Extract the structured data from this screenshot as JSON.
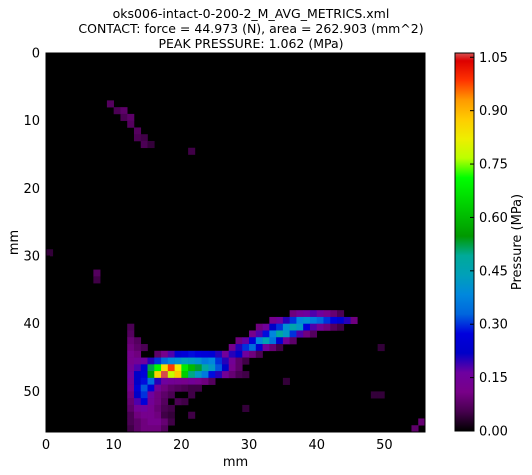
{
  "chart_data": {
    "type": "heatmap",
    "title_lines": [
      "oks006-intact-0-200-2_M_AVG_METRICS.xml",
      "CONTACT: force = 44.973 (N), area = 262.903 (mm^2)",
      "PEAK PRESSURE: 1.062 (MPa)"
    ],
    "xlabel": "mm",
    "ylabel": "mm",
    "xlim": [
      0,
      56
    ],
    "ylim": [
      56,
      0
    ],
    "x_ticks": [
      "0",
      "10",
      "20",
      "30",
      "40",
      "50"
    ],
    "y_ticks": [
      "0",
      "10",
      "20",
      "30",
      "40",
      "50"
    ],
    "colorbar": {
      "label": "Pressure (MPa)",
      "range": [
        0.0,
        1.062
      ],
      "ticks": [
        "0.00",
        "0.15",
        "0.30",
        "0.45",
        "0.60",
        "0.75",
        "0.90",
        "1.05"
      ],
      "colormap": "nipy_spectral"
    },
    "background_color": "#000000",
    "cells": [
      [
        9,
        7,
        0.07
      ],
      [
        10,
        8,
        0.06
      ],
      [
        11,
        8,
        0.08
      ],
      [
        11,
        9,
        0.06
      ],
      [
        12,
        9,
        0.08
      ],
      [
        12,
        10,
        0.07
      ],
      [
        13,
        11,
        0.07
      ],
      [
        13,
        12,
        0.06
      ],
      [
        14,
        12,
        0.05
      ],
      [
        14,
        13,
        0.06
      ],
      [
        15,
        13,
        0.04
      ],
      [
        21,
        14,
        0.05
      ],
      [
        0,
        29,
        0.04
      ],
      [
        7,
        32,
        0.07
      ],
      [
        7,
        33,
        0.05
      ],
      [
        36,
        38,
        0.1
      ],
      [
        37,
        38,
        0.14
      ],
      [
        38,
        38,
        0.16
      ],
      [
        39,
        38,
        0.18
      ],
      [
        40,
        38,
        0.16
      ],
      [
        41,
        38,
        0.12
      ],
      [
        42,
        38,
        0.09
      ],
      [
        43,
        38,
        0.06
      ],
      [
        33,
        39,
        0.12
      ],
      [
        34,
        39,
        0.16
      ],
      [
        35,
        39,
        0.2
      ],
      [
        36,
        39,
        0.3
      ],
      [
        37,
        39,
        0.38
      ],
      [
        38,
        39,
        0.4
      ],
      [
        39,
        39,
        0.36
      ],
      [
        40,
        39,
        0.33
      ],
      [
        41,
        39,
        0.3
      ],
      [
        42,
        39,
        0.27
      ],
      [
        43,
        39,
        0.24
      ],
      [
        44,
        39,
        0.2
      ],
      [
        45,
        39,
        0.1
      ],
      [
        12,
        40,
        0.06
      ],
      [
        31,
        40,
        0.1
      ],
      [
        32,
        40,
        0.15
      ],
      [
        33,
        40,
        0.22
      ],
      [
        34,
        40,
        0.3
      ],
      [
        35,
        40,
        0.4
      ],
      [
        36,
        40,
        0.46
      ],
      [
        37,
        40,
        0.42
      ],
      [
        38,
        40,
        0.27
      ],
      [
        39,
        40,
        0.18
      ],
      [
        40,
        40,
        0.14
      ],
      [
        41,
        40,
        0.1
      ],
      [
        42,
        40,
        0.07
      ],
      [
        43,
        40,
        0.05
      ],
      [
        12,
        41,
        0.07
      ],
      [
        30,
        41,
        0.12
      ],
      [
        31,
        41,
        0.18
      ],
      [
        32,
        41,
        0.28
      ],
      [
        33,
        41,
        0.38
      ],
      [
        34,
        41,
        0.48
      ],
      [
        35,
        41,
        0.42
      ],
      [
        36,
        41,
        0.3
      ],
      [
        37,
        41,
        0.18
      ],
      [
        38,
        41,
        0.1
      ],
      [
        39,
        41,
        0.07
      ],
      [
        12,
        42,
        0.09
      ],
      [
        13,
        42,
        0.07
      ],
      [
        28,
        42,
        0.1
      ],
      [
        29,
        42,
        0.17
      ],
      [
        30,
        42,
        0.26
      ],
      [
        31,
        42,
        0.38
      ],
      [
        32,
        42,
        0.45
      ],
      [
        33,
        42,
        0.35
      ],
      [
        34,
        42,
        0.24
      ],
      [
        35,
        42,
        0.14
      ],
      [
        36,
        42,
        0.08
      ],
      [
        12,
        43,
        0.1
      ],
      [
        13,
        43,
        0.08
      ],
      [
        14,
        43,
        0.06
      ],
      [
        27,
        43,
        0.12
      ],
      [
        28,
        43,
        0.2
      ],
      [
        29,
        43,
        0.3
      ],
      [
        30,
        43,
        0.34
      ],
      [
        31,
        43,
        0.24
      ],
      [
        32,
        43,
        0.15
      ],
      [
        33,
        43,
        0.09
      ],
      [
        34,
        43,
        0.05
      ],
      [
        49,
        43,
        0.04
      ],
      [
        12,
        44,
        0.12
      ],
      [
        13,
        44,
        0.1
      ],
      [
        16,
        44,
        0.08
      ],
      [
        17,
        44,
        0.12
      ],
      [
        18,
        44,
        0.18
      ],
      [
        19,
        44,
        0.24
      ],
      [
        20,
        44,
        0.26
      ],
      [
        21,
        44,
        0.28
      ],
      [
        22,
        44,
        0.27
      ],
      [
        23,
        44,
        0.26
      ],
      [
        24,
        44,
        0.25
      ],
      [
        25,
        44,
        0.2
      ],
      [
        26,
        44,
        0.15
      ],
      [
        27,
        44,
        0.2
      ],
      [
        28,
        44,
        0.22
      ],
      [
        29,
        44,
        0.16
      ],
      [
        30,
        44,
        0.1
      ],
      [
        31,
        44,
        0.06
      ],
      [
        12,
        45,
        0.12
      ],
      [
        13,
        45,
        0.14
      ],
      [
        14,
        45,
        0.16
      ],
      [
        15,
        45,
        0.2
      ],
      [
        16,
        45,
        0.3
      ],
      [
        17,
        45,
        0.34
      ],
      [
        18,
        45,
        0.38
      ],
      [
        19,
        45,
        0.4
      ],
      [
        20,
        45,
        0.43
      ],
      [
        21,
        45,
        0.42
      ],
      [
        22,
        45,
        0.4
      ],
      [
        23,
        45,
        0.36
      ],
      [
        24,
        45,
        0.38
      ],
      [
        25,
        45,
        0.3
      ],
      [
        26,
        45,
        0.2
      ],
      [
        27,
        45,
        0.14
      ],
      [
        28,
        45,
        0.08
      ],
      [
        29,
        45,
        0.05
      ],
      [
        12,
        46,
        0.14
      ],
      [
        13,
        46,
        0.18
      ],
      [
        14,
        46,
        0.24
      ],
      [
        15,
        46,
        0.52
      ],
      [
        16,
        46,
        0.7
      ],
      [
        17,
        46,
        0.85
      ],
      [
        18,
        46,
        0.98
      ],
      [
        19,
        46,
        0.83
      ],
      [
        20,
        46,
        0.68
      ],
      [
        21,
        46,
        0.6
      ],
      [
        22,
        46,
        0.53
      ],
      [
        23,
        46,
        0.48
      ],
      [
        24,
        46,
        0.42
      ],
      [
        25,
        46,
        0.32
      ],
      [
        26,
        46,
        0.22
      ],
      [
        27,
        46,
        0.12
      ],
      [
        28,
        46,
        0.08
      ],
      [
        12,
        47,
        0.16
      ],
      [
        13,
        47,
        0.22
      ],
      [
        14,
        47,
        0.26
      ],
      [
        15,
        47,
        0.56
      ],
      [
        16,
        47,
        0.86
      ],
      [
        17,
        47,
        1.06
      ],
      [
        18,
        47,
        0.78
      ],
      [
        19,
        47,
        0.88
      ],
      [
        20,
        47,
        0.63
      ],
      [
        21,
        47,
        0.5
      ],
      [
        22,
        47,
        0.42
      ],
      [
        23,
        47,
        0.36
      ],
      [
        24,
        47,
        0.28
      ],
      [
        25,
        47,
        0.2
      ],
      [
        26,
        47,
        0.14
      ],
      [
        27,
        47,
        0.09
      ],
      [
        28,
        47,
        0.06
      ],
      [
        29,
        47,
        0.05
      ],
      [
        12,
        48,
        0.14
      ],
      [
        13,
        48,
        0.22
      ],
      [
        14,
        48,
        0.28
      ],
      [
        15,
        48,
        0.34
      ],
      [
        16,
        48,
        0.2
      ],
      [
        17,
        48,
        0.16
      ],
      [
        18,
        48,
        0.14
      ],
      [
        19,
        48,
        0.13
      ],
      [
        20,
        48,
        0.12
      ],
      [
        21,
        48,
        0.14
      ],
      [
        22,
        48,
        0.12
      ],
      [
        23,
        48,
        0.1
      ],
      [
        24,
        48,
        0.07
      ],
      [
        35,
        48,
        0.04
      ],
      [
        12,
        49,
        0.12
      ],
      [
        13,
        49,
        0.26
      ],
      [
        14,
        49,
        0.32
      ],
      [
        15,
        49,
        0.26
      ],
      [
        16,
        49,
        0.14
      ],
      [
        17,
        49,
        0.1
      ],
      [
        18,
        49,
        0.08
      ],
      [
        19,
        49,
        0.07
      ],
      [
        20,
        49,
        0.06
      ],
      [
        21,
        49,
        0.05
      ],
      [
        22,
        49,
        0.05
      ],
      [
        12,
        50,
        0.1
      ],
      [
        13,
        50,
        0.22
      ],
      [
        14,
        50,
        0.3
      ],
      [
        15,
        50,
        0.16
      ],
      [
        16,
        50,
        0.1
      ],
      [
        17,
        50,
        0.08
      ],
      [
        18,
        50,
        0.06
      ],
      [
        21,
        50,
        0.05
      ],
      [
        48,
        50,
        0.04
      ],
      [
        49,
        50,
        0.04
      ],
      [
        12,
        51,
        0.09
      ],
      [
        13,
        51,
        0.18
      ],
      [
        14,
        51,
        0.26
      ],
      [
        15,
        51,
        0.14
      ],
      [
        16,
        51,
        0.1
      ],
      [
        17,
        51,
        0.07
      ],
      [
        19,
        51,
        0.06
      ],
      [
        20,
        51,
        0.05
      ],
      [
        12,
        52,
        0.08
      ],
      [
        13,
        52,
        0.14
      ],
      [
        14,
        52,
        0.16
      ],
      [
        15,
        52,
        0.12
      ],
      [
        16,
        52,
        0.09
      ],
      [
        17,
        52,
        0.06
      ],
      [
        18,
        52,
        0.05
      ],
      [
        29,
        52,
        0.04
      ],
      [
        12,
        53,
        0.06
      ],
      [
        13,
        53,
        0.1
      ],
      [
        14,
        53,
        0.12
      ],
      [
        15,
        53,
        0.12
      ],
      [
        16,
        53,
        0.1
      ],
      [
        17,
        53,
        0.05
      ],
      [
        18,
        53,
        0.04
      ],
      [
        21,
        53,
        0.05
      ],
      [
        12,
        54,
        0.06
      ],
      [
        13,
        54,
        0.08
      ],
      [
        14,
        54,
        0.1
      ],
      [
        15,
        54,
        0.12
      ],
      [
        16,
        54,
        0.12
      ],
      [
        17,
        54,
        0.09
      ],
      [
        18,
        54,
        0.05
      ],
      [
        55,
        54,
        0.09
      ],
      [
        12,
        55,
        0.05
      ],
      [
        13,
        55,
        0.08
      ],
      [
        14,
        55,
        0.1
      ],
      [
        15,
        55,
        0.1
      ],
      [
        16,
        55,
        0.1
      ],
      [
        17,
        55,
        0.07
      ],
      [
        54,
        55,
        0.08
      ]
    ]
  }
}
